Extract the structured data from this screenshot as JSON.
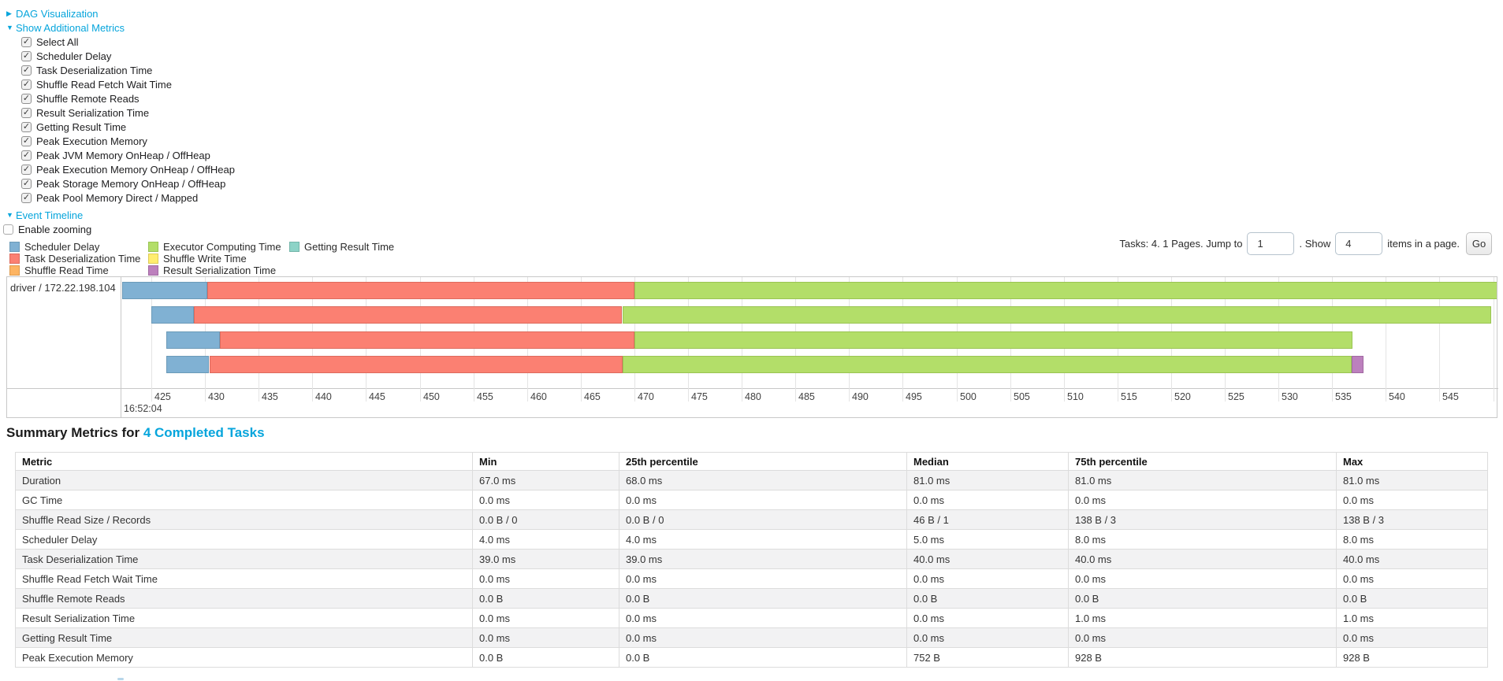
{
  "controls": {
    "dag": {
      "arrow": "▶",
      "label": "DAG Visualization"
    },
    "additional_metrics": {
      "arrow": "▼",
      "label": "Show Additional Metrics"
    },
    "checkboxes": [
      "Select All",
      "Scheduler Delay",
      "Task Deserialization Time",
      "Shuffle Read Fetch Wait Time",
      "Shuffle Remote Reads",
      "Result Serialization Time",
      "Getting Result Time",
      "Peak Execution Memory",
      "Peak JVM Memory OnHeap / OffHeap",
      "Peak Execution Memory OnHeap / OffHeap",
      "Peak Storage Memory OnHeap / OffHeap",
      "Peak Pool Memory Direct / Mapped"
    ],
    "event_timeline": {
      "arrow": "▼",
      "label": "Event Timeline"
    },
    "enable_zooming_label": "Enable zooming"
  },
  "legend": {
    "columns": [
      [
        {
          "label": "Scheduler Delay",
          "color": "#80B1D3",
          "border": "#6b9ab8"
        },
        {
          "label": "Task Deserialization Time",
          "color": "#FB8072",
          "border": "#dd6a5d"
        },
        {
          "label": "Shuffle Read Time",
          "color": "#FDB462",
          "border": "#dd9a4e"
        }
      ],
      [
        {
          "label": "Executor Computing Time",
          "color": "#B3DE69",
          "border": "#9ac453"
        },
        {
          "label": "Shuffle Write Time",
          "color": "#FFED6F",
          "border": "#ddcb58"
        },
        {
          "label": "Result Serialization Time",
          "color": "#BC80BD",
          "border": "#a169a2"
        }
      ],
      [
        {
          "label": "Getting Result Time",
          "color": "#8DD3C7",
          "border": "#74b6aa"
        }
      ]
    ]
  },
  "pager": {
    "prefix": "Tasks: 4. 1 Pages. Jump to",
    "jump_value": "1",
    "mid": ". Show",
    "show_value": "4",
    "suffix": "items in a page.",
    "go_label": "Go"
  },
  "chart_data": {
    "type": "timeline",
    "title": "Event Timeline",
    "group_label": "driver / 172.22.198.104",
    "x_axis": {
      "unit": "ms within second",
      "major_label": "16:52:04",
      "tick_start": 425,
      "tick_end": 550,
      "tick_step": 5,
      "window": [
        422.3,
        550.6
      ],
      "grid": true
    },
    "tasks": [
      {
        "name": "task-1",
        "segments": [
          {
            "metric": "Scheduler Delay",
            "from": 422.3,
            "to": 430.2
          },
          {
            "metric": "Task Deserialization Time",
            "from": 430.2,
            "to": 470.0
          },
          {
            "metric": "Executor Computing Time",
            "from": 470.0,
            "to": 550.6
          }
        ]
      },
      {
        "name": "task-2",
        "segments": [
          {
            "metric": "Scheduler Delay",
            "from": 425.0,
            "to": 429.0
          },
          {
            "metric": "Task Deserialization Time",
            "from": 429.0,
            "to": 468.9
          },
          {
            "metric": "Executor Computing Time",
            "from": 468.9,
            "to": 549.8
          }
        ]
      },
      {
        "name": "task-3",
        "segments": [
          {
            "metric": "Scheduler Delay",
            "from": 426.4,
            "to": 431.4
          },
          {
            "metric": "Task Deserialization Time",
            "from": 431.4,
            "to": 470.0
          },
          {
            "metric": "Executor Computing Time",
            "from": 470.0,
            "to": 536.9
          }
        ]
      },
      {
        "name": "task-4",
        "segments": [
          {
            "metric": "Scheduler Delay",
            "from": 426.4,
            "to": 430.4
          },
          {
            "metric": "Task Deserialization Time",
            "from": 430.4,
            "to": 468.9
          },
          {
            "metric": "Executor Computing Time",
            "from": 468.9,
            "to": 536.8
          },
          {
            "metric": "Result Serialization Time",
            "from": 536.8,
            "to": 537.9
          }
        ]
      }
    ]
  },
  "summary": {
    "heading_text": "Summary Metrics for ",
    "heading_link": "4 Completed Tasks",
    "table": {
      "headers": [
        "Metric",
        "Min",
        "25th percentile",
        "Median",
        "75th percentile",
        "Max"
      ],
      "rows": [
        [
          "Duration",
          "67.0 ms",
          "68.0 ms",
          "81.0 ms",
          "81.0 ms",
          "81.0 ms"
        ],
        [
          "GC Time",
          "0.0 ms",
          "0.0 ms",
          "0.0 ms",
          "0.0 ms",
          "0.0 ms"
        ],
        [
          "Shuffle Read Size / Records",
          "0.0 B / 0",
          "0.0 B / 0",
          "46 B / 1",
          "138 B / 3",
          "138 B / 3"
        ],
        [
          "Scheduler Delay",
          "4.0 ms",
          "4.0 ms",
          "5.0 ms",
          "8.0 ms",
          "8.0 ms"
        ],
        [
          "Task Deserialization Time",
          "39.0 ms",
          "39.0 ms",
          "40.0 ms",
          "40.0 ms",
          "40.0 ms"
        ],
        [
          "Shuffle Read Fetch Wait Time",
          "0.0 ms",
          "0.0 ms",
          "0.0 ms",
          "0.0 ms",
          "0.0 ms"
        ],
        [
          "Shuffle Remote Reads",
          "0.0 B",
          "0.0 B",
          "0.0 B",
          "0.0 B",
          "0.0 B"
        ],
        [
          "Result Serialization Time",
          "0.0 ms",
          "0.0 ms",
          "0.0 ms",
          "1.0 ms",
          "1.0 ms"
        ],
        [
          "Getting Result Time",
          "0.0 ms",
          "0.0 ms",
          "0.0 ms",
          "0.0 ms",
          "0.0 ms"
        ],
        [
          "Peak Execution Memory",
          "0.0 B",
          "0.0 B",
          "752 B",
          "928 B",
          "928 B"
        ]
      ]
    }
  },
  "colors": {
    "link_blue": "#06a5dc"
  }
}
